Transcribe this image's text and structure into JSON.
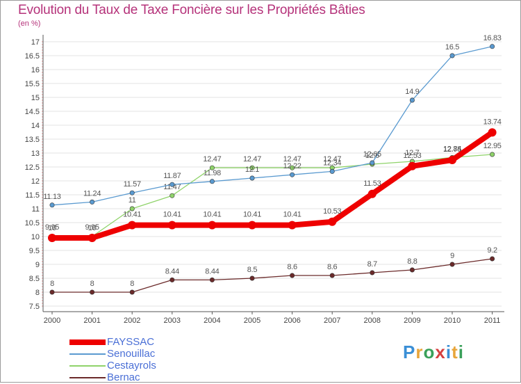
{
  "title": "Evolution du Taux de Taxe Foncière sur les Propriétés Bâties",
  "subtitle": "(en %)",
  "logo": {
    "letters": [
      "P",
      "r",
      "o",
      "x",
      "i",
      "t",
      "i"
    ],
    "colors": [
      "#3a8fd6",
      "#e8a53a",
      "#3aa05a",
      "#d64040",
      "#3a8fd6",
      "#e8a53a",
      "#3aa05a"
    ]
  },
  "chart_data": {
    "type": "line",
    "title": "Evolution du Taux de Taxe Foncière sur les Propriétés Bâties",
    "ylabel": "(en %)",
    "x": [
      "2000",
      "2001",
      "2002",
      "2003",
      "2004",
      "2005",
      "2006",
      "2007",
      "2008",
      "2009",
      "2010",
      "2011"
    ],
    "ylim": [
      7.5,
      17
    ],
    "yticks": [
      "7.5",
      "8",
      "8.5",
      "9",
      "9.5",
      "10",
      "10.5",
      "11",
      "11.5",
      "12",
      "12.5",
      "13",
      "13.5",
      "14",
      "14.5",
      "15",
      "15.5",
      "16",
      "16.5",
      "17"
    ],
    "grid": "horizontal",
    "legend_position": "bottom-left",
    "series": [
      {
        "name": "Bernac",
        "color": "#6b2a2a",
        "values": [
          8,
          8,
          8,
          8.44,
          8.44,
          8.5,
          8.6,
          8.6,
          8.7,
          8.8,
          9,
          9.2
        ],
        "labels": [
          "8",
          "8",
          "8",
          "8.44",
          "8.44",
          "8.5",
          "8.6",
          "8.6",
          "8.7",
          "8.8",
          "9",
          "9.2"
        ]
      },
      {
        "name": "Cestayrols",
        "color": "#8fd36a",
        "values": [
          10,
          10,
          11,
          11.47,
          12.47,
          12.47,
          12.47,
          12.47,
          12.6,
          12.7,
          12.84,
          12.95
        ],
        "labels": [
          "10",
          "10",
          "11",
          "11.47",
          "12.47",
          "12.47",
          "12.47",
          "12.47",
          "12.6",
          "12.7",
          "12.84",
          "12.95"
        ]
      },
      {
        "name": "Senouillac",
        "color": "#5a9ad0",
        "values": [
          11.13,
          11.24,
          11.57,
          11.87,
          11.98,
          12.1,
          12.22,
          12.34,
          12.65,
          14.9,
          16.5,
          16.83
        ],
        "labels": [
          "11.13",
          "11.24",
          "11.57",
          "11.87",
          "11.98",
          "12.1",
          "12.22",
          "12.34",
          "12.65",
          "14.9",
          "16.5",
          "16.83"
        ]
      },
      {
        "name": "FAYSSAC",
        "color": "#ee0000",
        "values": [
          9.95,
          9.95,
          10.41,
          10.41,
          10.41,
          10.41,
          10.41,
          10.53,
          11.53,
          12.53,
          12.75,
          13.74
        ],
        "labels": [
          "9.95",
          "9.95",
          "10.41",
          "10.41",
          "10.41",
          "10.41",
          "10.41",
          "10.53",
          "11.53",
          "12.53",
          "12.75",
          "13.74"
        ]
      }
    ],
    "legend": [
      "FAYSSAC",
      "Senouillac",
      "Cestayrols",
      "Bernac"
    ]
  }
}
